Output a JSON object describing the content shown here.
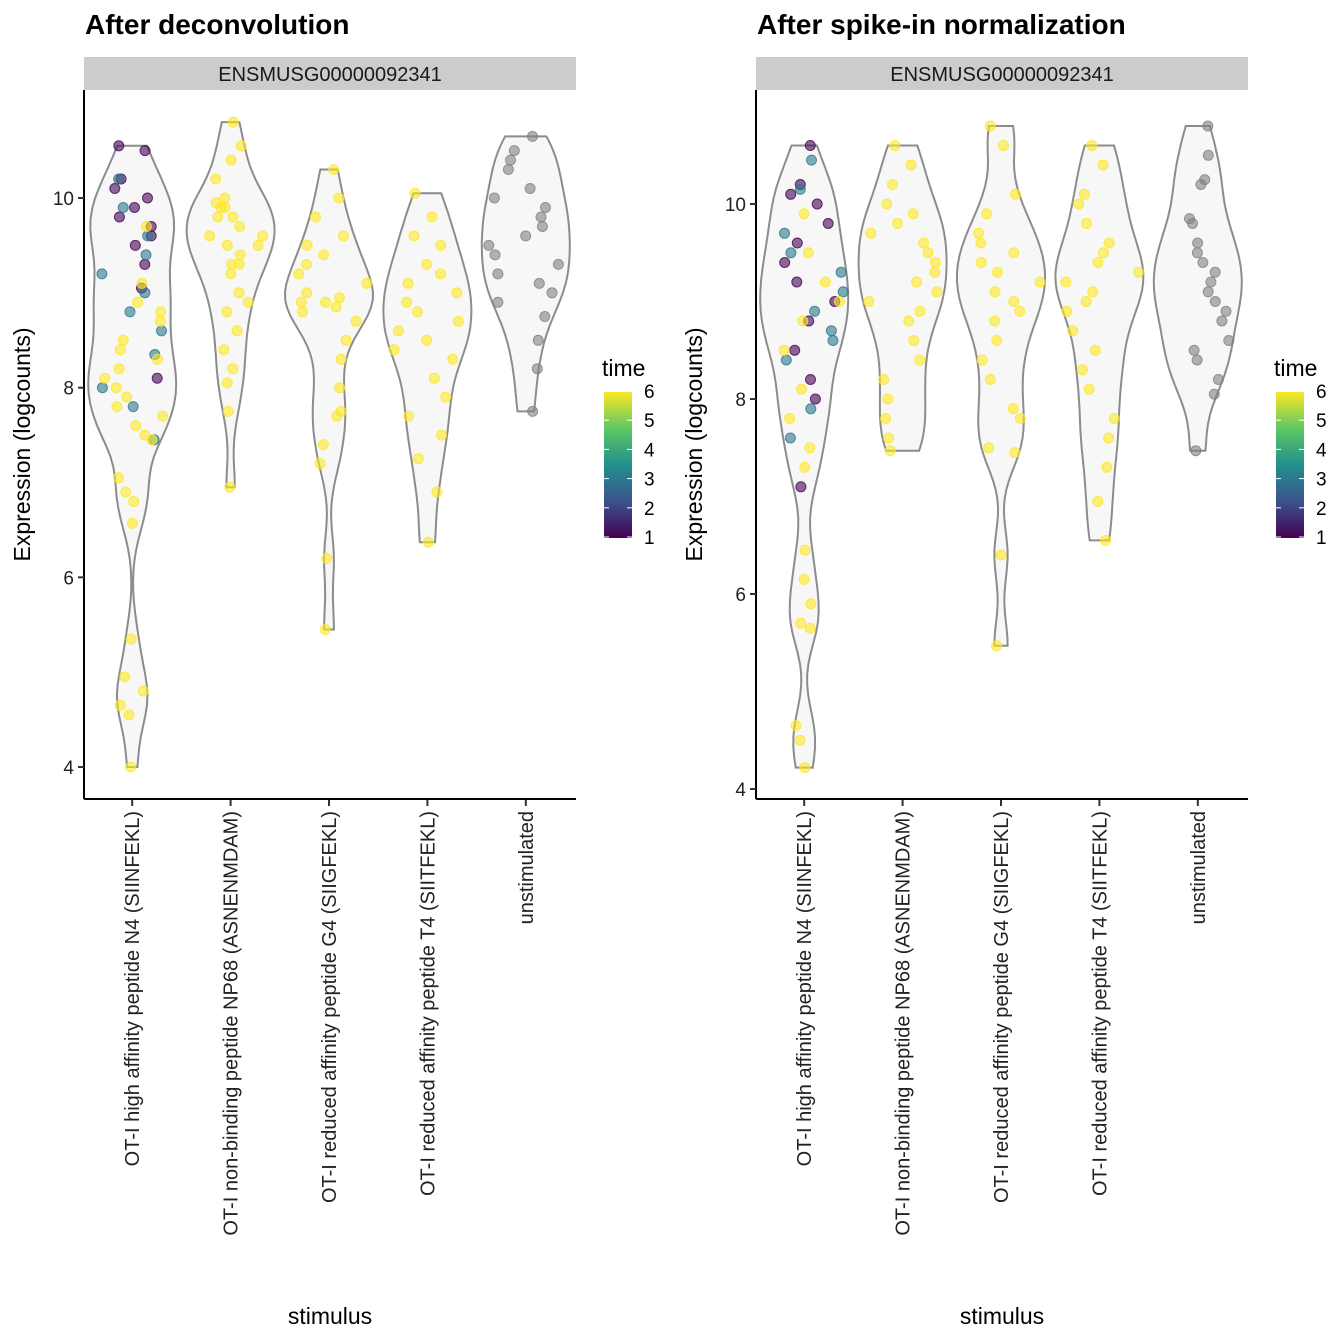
{
  "chart_data": [
    {
      "type": "violin",
      "title": "After deconvolution",
      "facet": "ENSMUSG00000092341",
      "xlabel": "stimulus",
      "ylabel": "Expression (logcounts)",
      "yticks": [
        4,
        6,
        8,
        10
      ],
      "ylim": [
        3.8,
        11.1
      ],
      "categories": [
        "OT-I high affinity peptide N4 (SIINFEKL)",
        "OT-I non-binding peptide NP68 (ASNENMDAM)",
        "OT-I reduced affinity peptide G4 (SIIGFEKL)",
        "OT-I reduced affinity peptide T4 (SIITFEKL)",
        "unstimulated"
      ],
      "points": [
        [
          [
            10.55,
            1
          ],
          [
            10.5,
            1
          ],
          [
            10.2,
            1
          ],
          [
            10.1,
            1
          ],
          [
            10.0,
            1
          ],
          [
            9.9,
            1
          ],
          [
            9.8,
            1
          ],
          [
            9.7,
            1
          ],
          [
            9.6,
            1
          ],
          [
            9.5,
            1
          ],
          [
            9.3,
            1
          ],
          [
            9.05,
            1
          ],
          [
            8.1,
            1
          ],
          [
            10.2,
            3
          ],
          [
            9.9,
            3
          ],
          [
            9.6,
            3
          ],
          [
            9.4,
            3
          ],
          [
            9.2,
            3
          ],
          [
            9.0,
            3
          ],
          [
            8.8,
            3
          ],
          [
            8.6,
            3
          ],
          [
            8.35,
            3
          ],
          [
            8.0,
            3
          ],
          [
            7.8,
            3
          ],
          [
            7.45,
            3
          ],
          [
            9.7,
            6
          ],
          [
            9.1,
            6
          ],
          [
            8.9,
            6
          ],
          [
            8.8,
            6
          ],
          [
            8.7,
            6
          ],
          [
            8.5,
            6
          ],
          [
            8.4,
            6
          ],
          [
            8.3,
            6
          ],
          [
            8.2,
            6
          ],
          [
            8.1,
            6
          ],
          [
            8.0,
            6
          ],
          [
            7.9,
            6
          ],
          [
            7.8,
            6
          ],
          [
            7.7,
            6
          ],
          [
            7.6,
            6
          ],
          [
            7.5,
            6
          ],
          [
            7.45,
            6
          ],
          [
            7.05,
            6
          ],
          [
            6.9,
            6
          ],
          [
            6.8,
            6
          ],
          [
            6.57,
            6
          ],
          [
            5.35,
            6
          ],
          [
            4.95,
            6
          ],
          [
            4.8,
            6
          ],
          [
            4.65,
            6
          ],
          [
            4.55,
            6
          ],
          [
            4.0,
            6
          ]
        ],
        [
          [
            10.8,
            6
          ],
          [
            10.55,
            6
          ],
          [
            10.4,
            6
          ],
          [
            10.2,
            6
          ],
          [
            10.0,
            6
          ],
          [
            9.95,
            6
          ],
          [
            9.9,
            6
          ],
          [
            9.9,
            6
          ],
          [
            9.8,
            6
          ],
          [
            9.8,
            6
          ],
          [
            9.7,
            6
          ],
          [
            9.6,
            6
          ],
          [
            9.6,
            6
          ],
          [
            9.5,
            6
          ],
          [
            9.5,
            6
          ],
          [
            9.4,
            6
          ],
          [
            9.3,
            6
          ],
          [
            9.3,
            6
          ],
          [
            9.2,
            6
          ],
          [
            9.0,
            6
          ],
          [
            8.9,
            6
          ],
          [
            8.8,
            6
          ],
          [
            8.6,
            6
          ],
          [
            8.4,
            6
          ],
          [
            8.2,
            6
          ],
          [
            8.05,
            6
          ],
          [
            7.75,
            6
          ],
          [
            6.95,
            6
          ]
        ],
        [
          [
            10.3,
            6
          ],
          [
            10.0,
            6
          ],
          [
            9.8,
            6
          ],
          [
            9.6,
            6
          ],
          [
            9.5,
            6
          ],
          [
            9.4,
            6
          ],
          [
            9.3,
            6
          ],
          [
            9.2,
            6
          ],
          [
            9.1,
            6
          ],
          [
            9.0,
            6
          ],
          [
            8.95,
            6
          ],
          [
            8.9,
            6
          ],
          [
            8.9,
            6
          ],
          [
            8.85,
            6
          ],
          [
            8.8,
            6
          ],
          [
            8.7,
            6
          ],
          [
            8.5,
            6
          ],
          [
            8.3,
            6
          ],
          [
            8.0,
            6
          ],
          [
            7.75,
            6
          ],
          [
            7.7,
            6
          ],
          [
            7.4,
            6
          ],
          [
            7.2,
            6
          ],
          [
            6.2,
            6
          ],
          [
            5.45,
            6
          ]
        ],
        [
          [
            10.05,
            6
          ],
          [
            9.8,
            6
          ],
          [
            9.6,
            6
          ],
          [
            9.5,
            6
          ],
          [
            9.3,
            6
          ],
          [
            9.2,
            6
          ],
          [
            9.1,
            6
          ],
          [
            9.0,
            6
          ],
          [
            8.9,
            6
          ],
          [
            8.8,
            6
          ],
          [
            8.7,
            6
          ],
          [
            8.6,
            6
          ],
          [
            8.5,
            6
          ],
          [
            8.4,
            6
          ],
          [
            8.3,
            6
          ],
          [
            8.1,
            6
          ],
          [
            7.9,
            6
          ],
          [
            7.7,
            6
          ],
          [
            7.5,
            6
          ],
          [
            7.25,
            6
          ],
          [
            6.9,
            6
          ],
          [
            6.37,
            6
          ]
        ],
        [
          [
            10.65,
            null
          ],
          [
            10.5,
            null
          ],
          [
            10.4,
            null
          ],
          [
            10.3,
            null
          ],
          [
            10.1,
            null
          ],
          [
            10.0,
            null
          ],
          [
            9.9,
            null
          ],
          [
            9.8,
            null
          ],
          [
            9.7,
            null
          ],
          [
            9.6,
            null
          ],
          [
            9.5,
            null
          ],
          [
            9.4,
            null
          ],
          [
            9.3,
            null
          ],
          [
            9.2,
            null
          ],
          [
            9.1,
            null
          ],
          [
            9.0,
            null
          ],
          [
            8.9,
            null
          ],
          [
            8.75,
            null
          ],
          [
            8.5,
            null
          ],
          [
            8.2,
            null
          ],
          [
            7.75,
            null
          ]
        ]
      ]
    },
    {
      "type": "violin",
      "title": "After spike-in normalization",
      "facet": "ENSMUSG00000092341",
      "xlabel": "stimulus",
      "ylabel": "Expression (logcounts)",
      "yticks": [
        4,
        6,
        8,
        10
      ],
      "ylim": [
        3.9,
        11.1
      ],
      "categories": [
        "OT-I high affinity peptide N4 (SIINFEKL)",
        "OT-I non-binding peptide NP68 (ASNENMDAM)",
        "OT-I reduced affinity peptide G4 (SIIGFEKL)",
        "OT-I reduced affinity peptide T4 (SIITFEKL)",
        "unstimulated"
      ],
      "points": [
        [
          [
            10.6,
            1
          ],
          [
            10.2,
            1
          ],
          [
            10.1,
            1
          ],
          [
            10.0,
            1
          ],
          [
            9.8,
            1
          ],
          [
            9.6,
            1
          ],
          [
            9.4,
            1
          ],
          [
            9.2,
            1
          ],
          [
            9.0,
            1
          ],
          [
            8.8,
            1
          ],
          [
            8.5,
            1
          ],
          [
            8.2,
            1
          ],
          [
            8.0,
            1
          ],
          [
            7.1,
            1
          ],
          [
            10.45,
            3
          ],
          [
            10.15,
            3
          ],
          [
            9.7,
            3
          ],
          [
            9.5,
            3
          ],
          [
            9.3,
            3
          ],
          [
            9.1,
            3
          ],
          [
            8.9,
            3
          ],
          [
            8.7,
            3
          ],
          [
            8.6,
            3
          ],
          [
            8.4,
            3
          ],
          [
            7.9,
            3
          ],
          [
            7.6,
            3
          ],
          [
            9.9,
            6
          ],
          [
            9.5,
            6
          ],
          [
            9.2,
            6
          ],
          [
            9.0,
            6
          ],
          [
            8.8,
            6
          ],
          [
            8.5,
            6
          ],
          [
            8.1,
            6
          ],
          [
            7.8,
            6
          ],
          [
            7.5,
            6
          ],
          [
            7.3,
            6
          ],
          [
            6.45,
            6
          ],
          [
            6.15,
            6
          ],
          [
            5.9,
            6
          ],
          [
            5.7,
            6
          ],
          [
            5.65,
            6
          ],
          [
            4.65,
            6
          ],
          [
            4.5,
            6
          ],
          [
            4.22,
            6
          ]
        ],
        [
          [
            10.6,
            6
          ],
          [
            10.4,
            6
          ],
          [
            10.2,
            6
          ],
          [
            10.0,
            6
          ],
          [
            9.9,
            6
          ],
          [
            9.8,
            6
          ],
          [
            9.7,
            6
          ],
          [
            9.6,
            6
          ],
          [
            9.5,
            6
          ],
          [
            9.4,
            6
          ],
          [
            9.3,
            6
          ],
          [
            9.2,
            6
          ],
          [
            9.1,
            6
          ],
          [
            9.0,
            6
          ],
          [
            8.9,
            6
          ],
          [
            8.8,
            6
          ],
          [
            8.6,
            6
          ],
          [
            8.4,
            6
          ],
          [
            8.2,
            6
          ],
          [
            8.0,
            6
          ],
          [
            7.8,
            6
          ],
          [
            7.6,
            6
          ],
          [
            7.47,
            6
          ]
        ],
        [
          [
            10.8,
            6
          ],
          [
            10.6,
            6
          ],
          [
            10.1,
            6
          ],
          [
            9.9,
            6
          ],
          [
            9.7,
            6
          ],
          [
            9.6,
            6
          ],
          [
            9.5,
            6
          ],
          [
            9.4,
            6
          ],
          [
            9.3,
            6
          ],
          [
            9.2,
            6
          ],
          [
            9.1,
            6
          ],
          [
            9.0,
            6
          ],
          [
            8.9,
            6
          ],
          [
            8.8,
            6
          ],
          [
            8.6,
            6
          ],
          [
            8.4,
            6
          ],
          [
            8.2,
            6
          ],
          [
            7.9,
            6
          ],
          [
            7.8,
            6
          ],
          [
            7.5,
            6
          ],
          [
            7.45,
            6
          ],
          [
            6.4,
            6
          ],
          [
            5.47,
            6
          ]
        ],
        [
          [
            10.6,
            6
          ],
          [
            10.4,
            6
          ],
          [
            10.1,
            6
          ],
          [
            10.0,
            6
          ],
          [
            9.8,
            6
          ],
          [
            9.6,
            6
          ],
          [
            9.5,
            6
          ],
          [
            9.4,
            6
          ],
          [
            9.3,
            6
          ],
          [
            9.2,
            6
          ],
          [
            9.1,
            6
          ],
          [
            9.0,
            6
          ],
          [
            8.9,
            6
          ],
          [
            8.7,
            6
          ],
          [
            8.5,
            6
          ],
          [
            8.3,
            6
          ],
          [
            8.1,
            6
          ],
          [
            7.8,
            6
          ],
          [
            7.6,
            6
          ],
          [
            7.3,
            6
          ],
          [
            6.95,
            6
          ],
          [
            6.55,
            6
          ]
        ],
        [
          [
            10.8,
            null
          ],
          [
            10.5,
            null
          ],
          [
            10.25,
            null
          ],
          [
            10.2,
            null
          ],
          [
            9.85,
            null
          ],
          [
            9.8,
            null
          ],
          [
            9.6,
            null
          ],
          [
            9.5,
            null
          ],
          [
            9.4,
            null
          ],
          [
            9.3,
            null
          ],
          [
            9.2,
            null
          ],
          [
            9.1,
            null
          ],
          [
            9.0,
            null
          ],
          [
            8.9,
            null
          ],
          [
            8.8,
            null
          ],
          [
            8.6,
            null
          ],
          [
            8.5,
            null
          ],
          [
            8.4,
            null
          ],
          [
            8.2,
            null
          ],
          [
            8.05,
            null
          ],
          [
            7.47,
            null
          ]
        ]
      ]
    }
  ],
  "legend": {
    "title": "time",
    "ticks": [
      1,
      2,
      3,
      4,
      5,
      6
    ],
    "palette": "viridis",
    "colors": [
      "#440154",
      "#3B528B",
      "#21908C",
      "#5DC863",
      "#FDE725"
    ],
    "na_color": "#808080"
  },
  "colors": {
    "violin_stroke": "#8c8c8c",
    "violin_fill": "#f7f7f7",
    "strip_fill": "#cccccc"
  }
}
